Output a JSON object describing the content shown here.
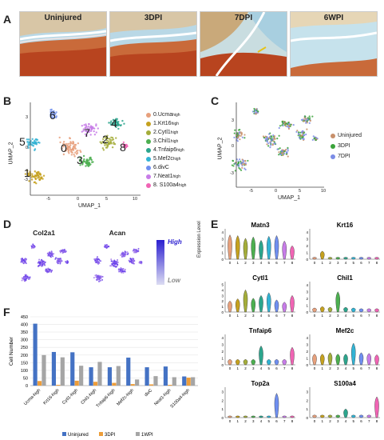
{
  "panels": {
    "A": "A",
    "B": "B",
    "C": "C",
    "D": "D",
    "E": "E",
    "F": "F"
  },
  "panel_a": {
    "labels": [
      "Uninjured",
      "3DPI",
      "7DPI",
      "6WPI"
    ]
  },
  "panel_b": {
    "xlabel": "UMAP_1",
    "ylabel": "UMAP_2",
    "xticks": [
      "-5",
      "0",
      "5",
      "10"
    ],
    "yticks": [
      "-3",
      "0",
      "3"
    ],
    "cluster_numbers": [
      "0",
      "1",
      "2",
      "3",
      "4",
      "5",
      "6",
      "7",
      "8"
    ],
    "legend": [
      {
        "label": "0.Ucma",
        "sup": "high",
        "color": "#e7a07c"
      },
      {
        "label": "1.Krt16",
        "sup": "high",
        "color": "#c5a11f"
      },
      {
        "label": "2.Cytl1",
        "sup": "high",
        "color": "#a4ad3a"
      },
      {
        "label": "3.Chil1",
        "sup": "high",
        "color": "#4caf50"
      },
      {
        "label": "4.Tnfaip6",
        "sup": "high",
        "color": "#2ca58d"
      },
      {
        "label": "5.Mef2c",
        "sup": "high",
        "color": "#32b3d4"
      },
      {
        "label": "6.divC",
        "sup": "",
        "color": "#6f8ff0"
      },
      {
        "label": "7.Neat1",
        "sup": "high",
        "color": "#c77ce8"
      },
      {
        "label": "8. S100a4",
        "sup": "high",
        "color": "#f064b4"
      }
    ]
  },
  "panel_c": {
    "xlabel": "UMAP_1",
    "ylabel": "UMAP_2",
    "xticks": [
      "-5",
      "0",
      "5",
      "10"
    ],
    "yticks": [
      "-3",
      "0",
      "3"
    ],
    "legend": [
      {
        "label": "Uninjured",
        "color": "#c8906b"
      },
      {
        "label": "3DPI",
        "color": "#3aa33a"
      },
      {
        "label": "7DPI",
        "color": "#7b8ce6"
      }
    ]
  },
  "panel_d": {
    "genes": [
      "Col2a1",
      "Acan"
    ],
    "scale_high": "High",
    "scale_low": "Low"
  },
  "panel_e": {
    "ylabel": "Expression Level",
    "cluster_ticks": [
      "0",
      "1",
      "2",
      "3",
      "4",
      "5",
      "6",
      "7",
      "8"
    ],
    "colors": [
      "#e7a07c",
      "#c5a11f",
      "#a4ad3a",
      "#4caf50",
      "#2ca58d",
      "#32b3d4",
      "#6f8ff0",
      "#c77ce8",
      "#f064b4"
    ],
    "genes": [
      {
        "name": "Matn3",
        "yticks": [
          "0",
          "1",
          "2",
          "3",
          "4"
        ],
        "ymax": 4.5,
        "levels": [
          3.6,
          3.5,
          3.1,
          3.3,
          2.8,
          3.4,
          3.5,
          2.7,
          2.0
        ]
      },
      {
        "name": "Krt16",
        "yticks": [
          "0",
          "1",
          "2",
          "3",
          "4"
        ],
        "ymax": 4.5,
        "levels": [
          0.3,
          1.2,
          0.3,
          0.3,
          0.3,
          0.3,
          0.3,
          0.3,
          0.3
        ]
      },
      {
        "name": "Cytl1",
        "yticks": [
          "0",
          "1",
          "2",
          "3",
          "4",
          "5"
        ],
        "ymax": 5.5,
        "levels": [
          2.0,
          2.4,
          4.0,
          2.5,
          3.0,
          3.5,
          2.2,
          1.8,
          3.0
        ]
      },
      {
        "name": "Chil1",
        "yticks": [
          "0",
          "1",
          "2",
          "3",
          "4"
        ],
        "ymax": 4.5,
        "levels": [
          0.6,
          0.8,
          0.7,
          3.0,
          0.7,
          0.6,
          0.5,
          0.5,
          0.5
        ]
      },
      {
        "name": "Tnfaip6",
        "yticks": [
          "0",
          "1",
          "2",
          "3",
          "4"
        ],
        "ymax": 4.5,
        "levels": [
          0.8,
          0.8,
          0.8,
          0.8,
          2.8,
          0.8,
          0.8,
          0.8,
          2.6
        ]
      },
      {
        "name": "Mef2c",
        "yticks": [
          "0",
          "1",
          "2",
          "3",
          "4"
        ],
        "ymax": 4.5,
        "levels": [
          1.6,
          1.6,
          1.8,
          1.6,
          1.6,
          3.2,
          1.8,
          1.7,
          1.5
        ]
      },
      {
        "name": "Top2a",
        "yticks": [
          "0",
          "1",
          "2",
          "3"
        ],
        "ymax": 3.5,
        "levels": [
          0.2,
          0.2,
          0.2,
          0.2,
          0.2,
          0.2,
          2.8,
          0.2,
          0.2
        ]
      },
      {
        "name": "S100a4",
        "yticks": [
          "0",
          "1",
          "2",
          "3"
        ],
        "ymax": 3.5,
        "levels": [
          0.3,
          0.3,
          0.3,
          0.3,
          1.0,
          0.3,
          0.3,
          0.3,
          2.4
        ]
      }
    ]
  },
  "chart_data": {
    "type": "bar",
    "ylabel": "Cell Number",
    "ylim": [
      0,
      450
    ],
    "yticks": [
      "0",
      "50",
      "100",
      "150",
      "200",
      "250",
      "300",
      "350",
      "400",
      "450"
    ],
    "categories": [
      "Ucma-high",
      "Krt16-high",
      "Cytl1-high",
      "Chil1-high",
      "Tnfaip6-high",
      "Mef2c-high",
      "divC",
      "Neat1-high",
      "S100a4-high"
    ],
    "series": [
      {
        "name": "Uninjured",
        "color": "#4472c4",
        "values": [
          405,
          220,
          218,
          120,
          120,
          183,
          120,
          125,
          60
        ]
      },
      {
        "name": "3DPI",
        "color": "#ed9d3a",
        "values": [
          30,
          5,
          32,
          25,
          18,
          10,
          8,
          5,
          52
        ]
      },
      {
        "name": "1WPI",
        "color": "#a5a5a5",
        "values": [
          200,
          185,
          130,
          155,
          128,
          40,
          62,
          55,
          55
        ]
      }
    ],
    "legend_position": "bottom"
  }
}
